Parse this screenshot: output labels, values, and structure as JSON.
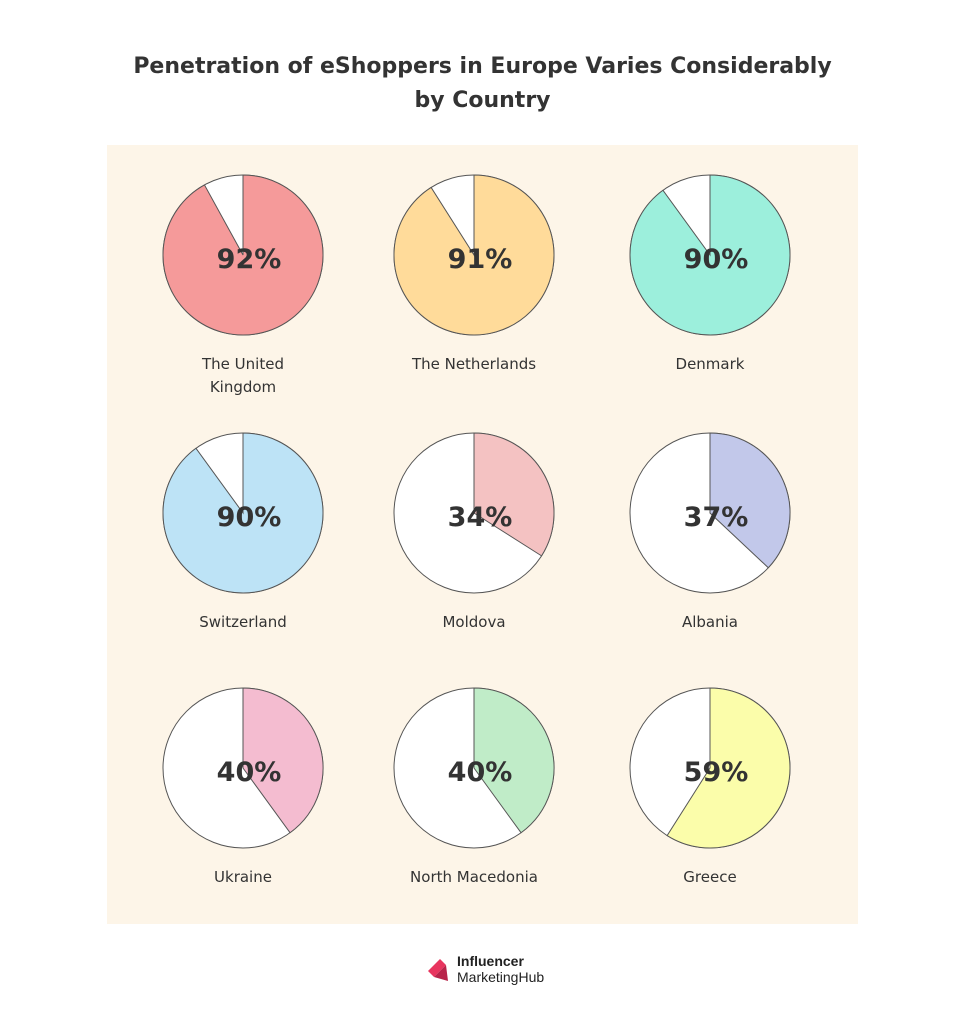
{
  "title_line1": "Penetration of eShoppers in Europe Varies Considerably",
  "title_line2": "by Country",
  "colors": {
    "panel_background": "#fdf5e8",
    "empty_slice": "#ffffff",
    "outline": "#555555",
    "value_text": "#333333",
    "label_text": "#333333",
    "logo_pink": "#e8355f",
    "logo_pink_dark": "#b8244a"
  },
  "chart_data": [
    {
      "type": "pie",
      "title": "",
      "label_lines": [
        "The United",
        "Kingdom"
      ],
      "value": 92,
      "value_label": "92%",
      "color": "#f59a9a"
    },
    {
      "type": "pie",
      "title": "",
      "label_lines": [
        "The Netherlands"
      ],
      "value": 91,
      "value_label": "91%",
      "color": "#ffdb9a"
    },
    {
      "type": "pie",
      "title": "",
      "label_lines": [
        "Denmark"
      ],
      "value": 90,
      "value_label": "90%",
      "color": "#9cefdc"
    },
    {
      "type": "pie",
      "title": "",
      "label_lines": [
        "Switzerland"
      ],
      "value": 90,
      "value_label": "90%",
      "color": "#bde3f6"
    },
    {
      "type": "pie",
      "title": "",
      "label_lines": [
        "Moldova"
      ],
      "value": 34,
      "value_label": "34%",
      "color": "#f4c2c2"
    },
    {
      "type": "pie",
      "title": "",
      "label_lines": [
        "Albania"
      ],
      "value": 37,
      "value_label": "37%",
      "color": "#c2c8ea"
    },
    {
      "type": "pie",
      "title": "",
      "label_lines": [
        "Ukraine"
      ],
      "value": 40,
      "value_label": "40%",
      "color": "#f4bcd0"
    },
    {
      "type": "pie",
      "title": "",
      "label_lines": [
        "North Macedonia"
      ],
      "value": 40,
      "value_label": "40%",
      "color": "#c0ecc8"
    },
    {
      "type": "pie",
      "title": "",
      "label_lines": [
        "Greece"
      ],
      "value": 59,
      "value_label": "59%",
      "color": "#fbfdaa"
    }
  ],
  "logo": {
    "line1": "Influencer",
    "line2": "MarketingHub"
  }
}
